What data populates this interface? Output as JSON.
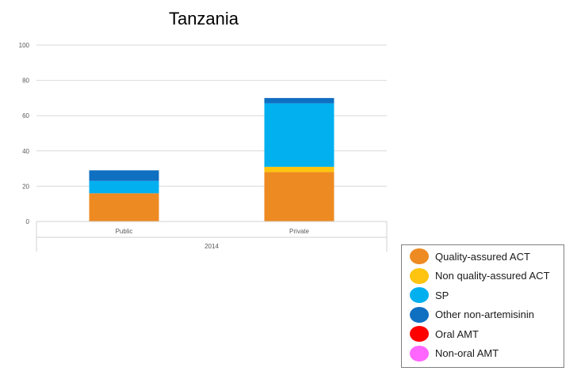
{
  "chart_data": {
    "type": "bar",
    "stacked": true,
    "title": "Tanzania",
    "group_label": "2014",
    "categories": [
      "Public",
      "Private"
    ],
    "ylim": [
      0,
      100
    ],
    "yticks": [
      0,
      20,
      40,
      60,
      80,
      100
    ],
    "grid": true,
    "legend_placement": "bottom-right",
    "series": [
      {
        "name": "Quality-assured ACT",
        "color": "#ee8a22",
        "values": [
          16,
          28
        ]
      },
      {
        "name": "Non quality-assured ACT",
        "color": "#fec40f",
        "values": [
          0,
          3
        ]
      },
      {
        "name": "SP",
        "color": "#02b0f0",
        "values": [
          7,
          36
        ]
      },
      {
        "name": "Other non-artemisinin",
        "color": "#0f6fc1",
        "values": [
          6,
          3
        ]
      },
      {
        "name": "Oral AMT",
        "color": "#ff0000",
        "values": [
          0,
          0
        ]
      },
      {
        "name": "Non-oral AMT",
        "color": "#ff66ff",
        "values": [
          0,
          0
        ]
      }
    ]
  }
}
